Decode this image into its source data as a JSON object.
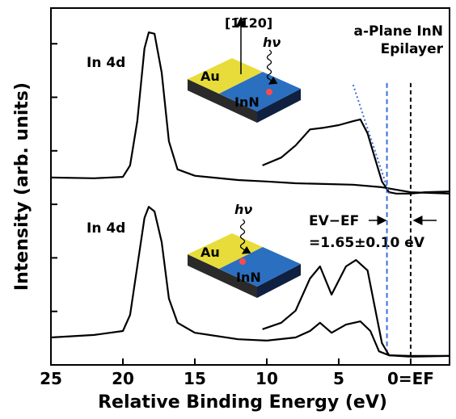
{
  "chart_data": {
    "type": "line",
    "xlabel": "Relative Binding Energy (eV)",
    "ylabel": "Intensity (arb. units)",
    "xlim": [
      25,
      -2.7
    ],
    "xticks": [
      25,
      20,
      15,
      10,
      5,
      {
        "value": 0,
        "label": "0=EF"
      }
    ],
    "ylim": [
      0,
      100
    ],
    "yticks": [
      15,
      30,
      45,
      60,
      75,
      90
    ],
    "series": [
      {
        "color": "#000000",
        "x": [
          25,
          22,
          20,
          19.5,
          19,
          18.5,
          18.2,
          17.8,
          17.3,
          16.8,
          16.2,
          15,
          12,
          10,
          8,
          6,
          4,
          2,
          0,
          -2.7
        ],
        "values": [
          52.5,
          52.3,
          52.7,
          55.9,
          68.3,
          88.7,
          93.2,
          92.8,
          81.9,
          62.7,
          54.8,
          53,
          51.8,
          51.4,
          50.9,
          50.7,
          50.5,
          49.8,
          48.4,
          48
        ]
      },
      {
        "color": "#000000",
        "x": [
          10.3,
          9,
          8,
          7,
          6,
          5,
          4,
          3.5,
          3,
          2.5,
          2,
          1.5,
          1,
          0,
          -1,
          -2.7
        ],
        "values": [
          55.9,
          58.1,
          61.5,
          66,
          66.5,
          67.2,
          68.3,
          68.8,
          64.9,
          58.1,
          51.4,
          48.4,
          48,
          48,
          48.4,
          48.6
        ]
      },
      {
        "color": "#000000",
        "x": [
          25,
          22,
          20,
          19.5,
          19,
          18.5,
          18.2,
          17.8,
          17.3,
          16.8,
          16.2,
          15,
          12,
          10,
          8,
          7,
          6.3,
          5.5,
          4.5,
          3.5,
          2.8,
          2.2,
          1.5,
          0,
          -2.7
        ],
        "values": [
          7.7,
          8.4,
          9.5,
          14,
          27.6,
          41.2,
          44.3,
          43,
          34.4,
          18.6,
          11.8,
          9,
          7.2,
          6.8,
          7.7,
          9.5,
          11.8,
          9,
          11.3,
          12.2,
          9.5,
          3.8,
          2.7,
          2.5,
          2.5
        ]
      },
      {
        "color": "#000000",
        "x": [
          10.3,
          9,
          8,
          7,
          6.3,
          5.5,
          4.5,
          3.8,
          3,
          2.5,
          2,
          1.5,
          0,
          -2.7
        ],
        "values": [
          10,
          11.8,
          15.2,
          24.2,
          27.6,
          19.7,
          27.6,
          29.4,
          26.5,
          16.3,
          6.1,
          2.7,
          2.3,
          2.5
        ]
      }
    ],
    "extrapolation": {
      "color": "#3a6fd8",
      "x": [
        4,
        1.5
      ],
      "values": [
        78.5,
        48
      ]
    },
    "vbm_line": {
      "value": 1.65,
      "color": "#3a6fd8"
    },
    "fermi_line": {
      "value": 0,
      "color": "#000000"
    },
    "annotations": {
      "title1": "a-Plane InN",
      "title2": "Epilayer",
      "peak_top": "In 4d",
      "peak_bottom": "In 4d",
      "gap_label": "EV−EF",
      "gap_value": "=1.65±0.10 eV",
      "direction": "[1̄1̄20]",
      "photon_top": "hν",
      "photon_bottom": "hν",
      "au_top": "Au",
      "inn_top": "InN",
      "au_bottom": "Au",
      "inn_bottom": "InN"
    }
  }
}
